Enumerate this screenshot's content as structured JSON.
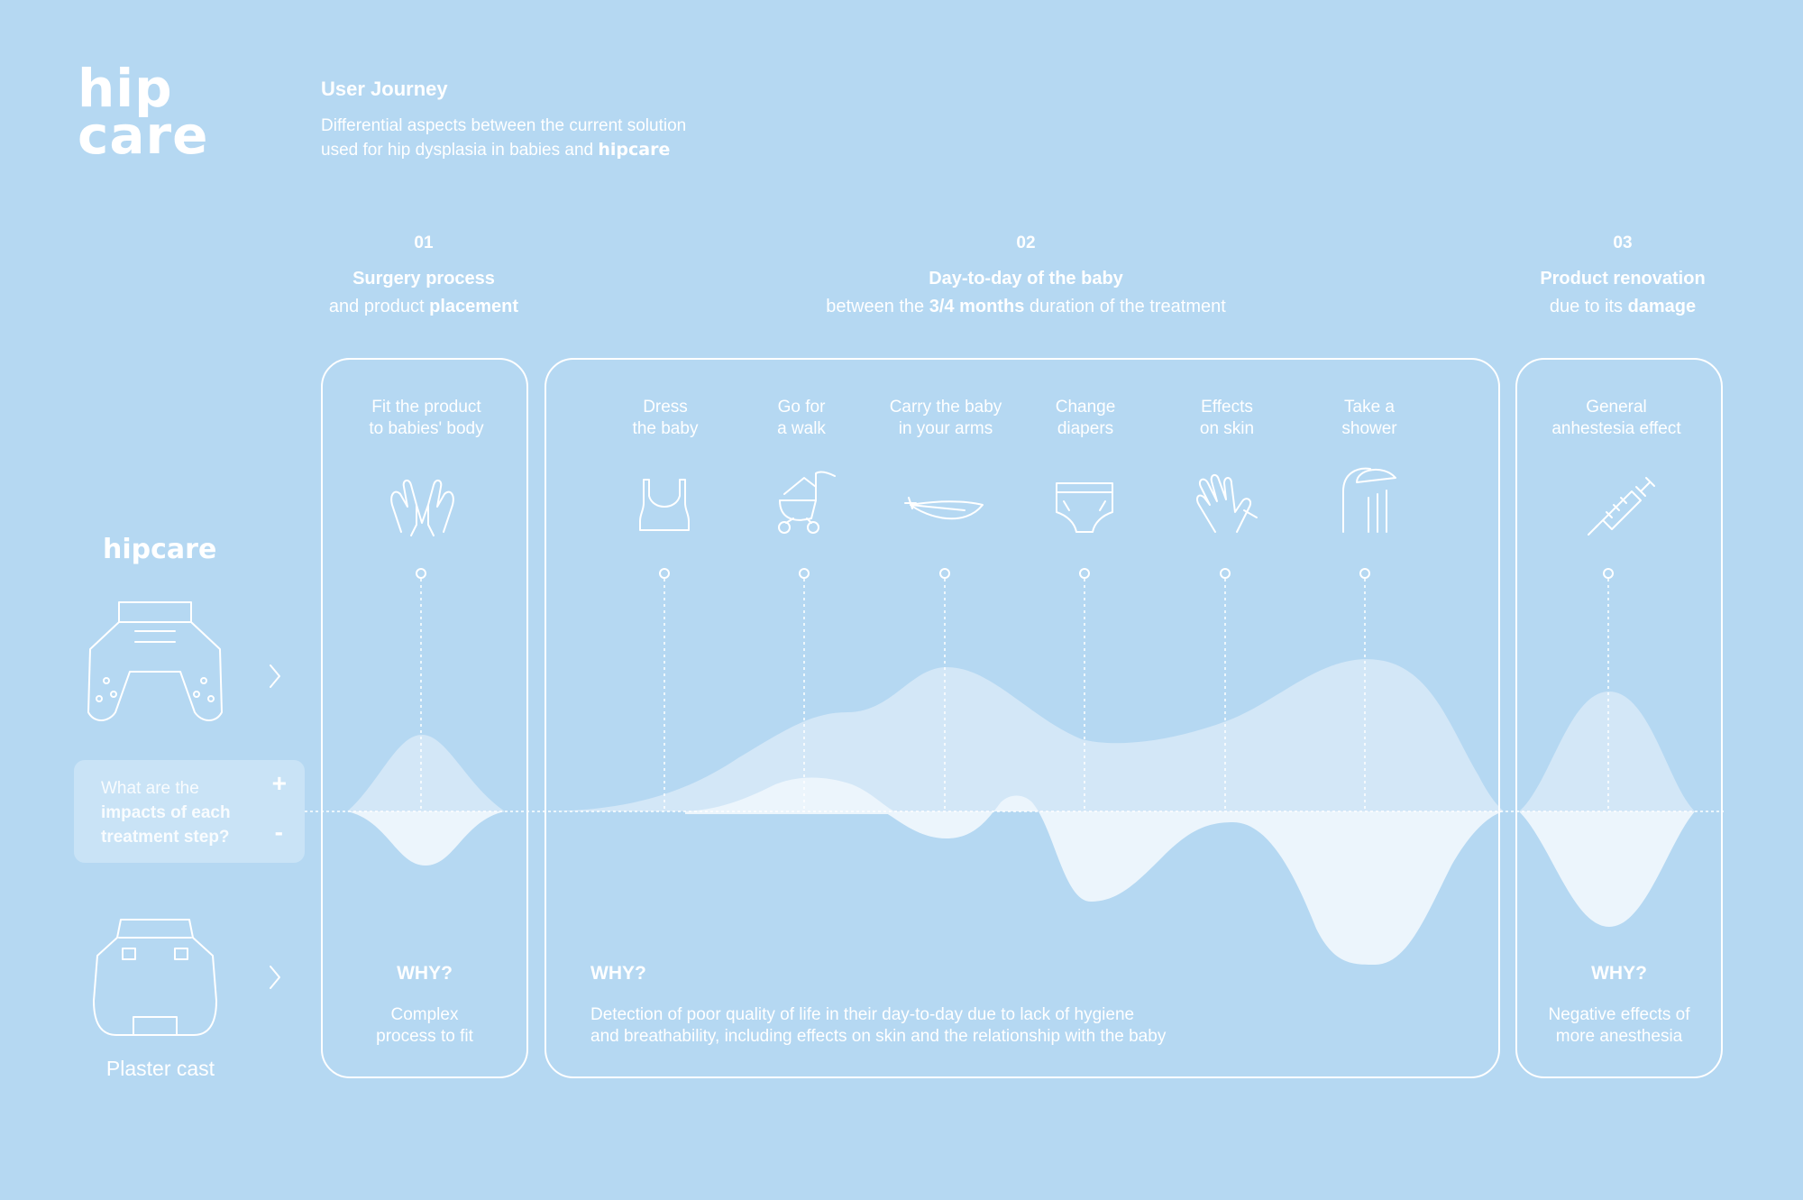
{
  "brand": {
    "logo_top": "hip",
    "logo_bottom": "care",
    "name_inline": "hipcare"
  },
  "header": {
    "title": "User Journey",
    "desc_line1": "Differential aspects between the current solution",
    "desc_line2": "used for hip dysplasia in babies and"
  },
  "phases": [
    {
      "num": "01",
      "title": "Surgery process",
      "sub_pre": "and product ",
      "sub_bold": "placement",
      "sub_post": ""
    },
    {
      "num": "02",
      "title": "Day-to-day of the baby",
      "sub_pre": "between the ",
      "sub_bold": "3/4 months",
      "sub_post": " duration of the treatment"
    },
    {
      "num": "03",
      "title": "Product renovation",
      "sub_pre": "due to its ",
      "sub_bold": "damage",
      "sub_post": ""
    }
  ],
  "steps": [
    {
      "line1": "Fit the product",
      "line2": "to babies' body",
      "icon": "hands-icon"
    },
    {
      "line1": "Dress",
      "line2": "the baby",
      "icon": "tank-top-icon"
    },
    {
      "line1": "Go for",
      "line2": "a walk",
      "icon": "stroller-icon"
    },
    {
      "line1": "Carry the baby",
      "line2": "in your arms",
      "icon": "feather-icon"
    },
    {
      "line1": "Change",
      "line2": "diapers",
      "icon": "diaper-icon"
    },
    {
      "line1": "Effects",
      "line2": "on skin",
      "icon": "skin-hand-icon"
    },
    {
      "line1": "Take a",
      "line2": "shower",
      "icon": "shower-icon"
    },
    {
      "line1": "General",
      "line2": "anhestesia effect",
      "icon": "syringe-icon"
    }
  ],
  "why": [
    {
      "title": "WHY?",
      "line1": "Complex",
      "line2": "process to fit"
    },
    {
      "title": "WHY?",
      "line1": "Detection of poor quality of life in their day-to-day due to lack of hygiene",
      "line2": "and breathability, including effects on skin and the relationship with the baby"
    },
    {
      "title": "WHY?",
      "line1": "Negative effects of",
      "line2": "more anesthesia"
    }
  ],
  "impact": {
    "line1": "What are the",
    "line2": "impacts of each",
    "line3": "treatment step?",
    "plus": "+",
    "minus": "-"
  },
  "products": {
    "top": "hipcare",
    "bottom": "Plaster cast",
    "arrow": "›"
  },
  "colors": {
    "background": "#b5d8f2",
    "line": "#ffffff",
    "hipcare_wave": "#d3e7f7",
    "plaster_wave": "#ecf5fc"
  }
}
